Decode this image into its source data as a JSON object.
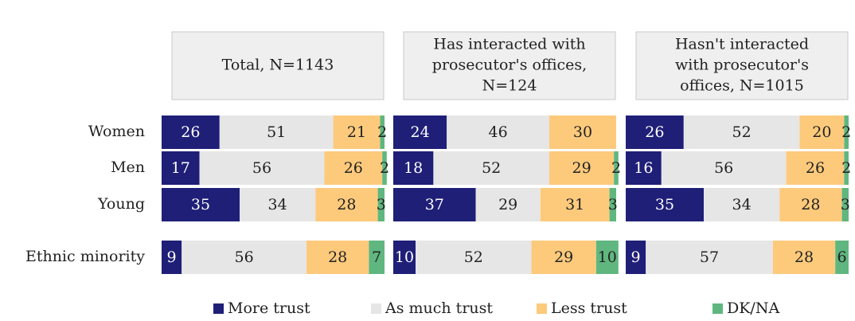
{
  "chart_data": {
    "type": "stacked_bar_h",
    "categories": [
      "Women",
      "Men",
      "Young",
      "Ethnic minority"
    ],
    "series": [
      {
        "name": "More trust",
        "color": "#1f1f78"
      },
      {
        "name": "As much trust",
        "color": "#e6e6e6"
      },
      {
        "name": "Less trust",
        "color": "#fdca7c"
      },
      {
        "name": "DK/NA",
        "color": "#5fb77f"
      }
    ],
    "xlim": [
      0,
      100
    ],
    "panels": [
      {
        "title": [
          "Total, N=1143"
        ],
        "values": [
          [
            26,
            51,
            21,
            2
          ],
          [
            17,
            56,
            26,
            2
          ],
          [
            35,
            34,
            28,
            3
          ],
          [
            9,
            56,
            28,
            7
          ]
        ]
      },
      {
        "title": [
          "Has interacted with",
          "prosecutor's offices,",
          "N=124"
        ],
        "values": [
          [
            24,
            46,
            30,
            null
          ],
          [
            18,
            52,
            29,
            2
          ],
          [
            37,
            29,
            31,
            3
          ],
          [
            10,
            52,
            29,
            10
          ]
        ]
      },
      {
        "title": [
          "Hasn't interacted",
          "with  prosecutor's",
          "offices, N=1015"
        ],
        "values": [
          [
            26,
            52,
            20,
            2
          ],
          [
            16,
            56,
            26,
            2
          ],
          [
            35,
            34,
            28,
            3
          ],
          [
            9,
            57,
            28,
            6
          ]
        ]
      }
    ]
  }
}
